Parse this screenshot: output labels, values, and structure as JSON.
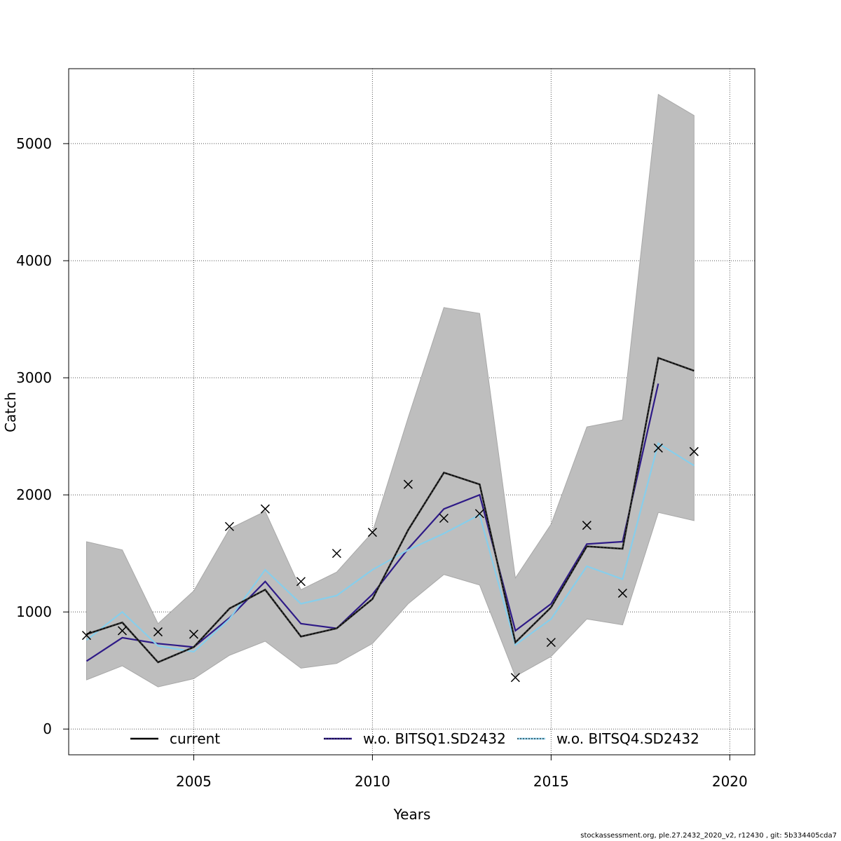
{
  "chart_data": {
    "type": "line",
    "title": "",
    "xlabel": "Years",
    "ylabel": "Catch",
    "xlim": [
      2001.5,
      2020.7
    ],
    "ylim": [
      -220,
      5640
    ],
    "x_ticks": [
      2005,
      2010,
      2015,
      2020
    ],
    "y_ticks": [
      0,
      1000,
      2000,
      3000,
      4000,
      5000
    ],
    "grid": true,
    "legend_position": "bottom",
    "x": [
      2002,
      2003,
      2004,
      2005,
      2006,
      2007,
      2008,
      2009,
      2010,
      2011,
      2012,
      2013,
      2014,
      2015,
      2016,
      2017,
      2018,
      2019
    ],
    "band": {
      "color": "#bebebe",
      "lower": [
        420,
        540,
        360,
        430,
        630,
        750,
        520,
        560,
        730,
        1070,
        1320,
        1230,
        450,
        620,
        940,
        890,
        1850,
        1780
      ],
      "upper": [
        1600,
        1530,
        900,
        1180,
        1710,
        1860,
        1190,
        1340,
        1680,
        2660,
        3600,
        3550,
        1290,
        1750,
        2580,
        2640,
        5420,
        5240
      ]
    },
    "series": [
      {
        "name": "current",
        "color": "#000000",
        "values": [
          810,
          910,
          570,
          700,
          1030,
          1190,
          790,
          860,
          1110,
          1700,
          2190,
          2090,
          740,
          1040,
          1560,
          1540,
          3170,
          3060
        ]
      },
      {
        "name": "w.o. BITSQ1.SD2432",
        "color": "#2e1a87",
        "values": [
          580,
          780,
          730,
          700,
          950,
          1260,
          900,
          860,
          1150,
          1540,
          1880,
          2000,
          840,
          1070,
          1580,
          1600,
          2950,
          null
        ]
      },
      {
        "name": "w.o. BITSQ4.SD2432",
        "color": "#87ceeb",
        "values": [
          760,
          1000,
          710,
          660,
          940,
          1360,
          1070,
          1140,
          1360,
          1530,
          1670,
          1830,
          720,
          940,
          1390,
          1280,
          2440,
          2250
        ]
      }
    ],
    "observations": {
      "marker": "x",
      "x": [
        2002,
        2003,
        2004,
        2005,
        2006,
        2007,
        2008,
        2009,
        2010,
        2011,
        2012,
        2013,
        2014,
        2015,
        2016,
        2017,
        2018,
        2019
      ],
      "values": [
        800,
        840,
        830,
        810,
        1730,
        1880,
        1260,
        1500,
        1680,
        2090,
        1800,
        1840,
        440,
        740,
        1740,
        1160,
        2400,
        2370
      ]
    }
  },
  "footer": "stockassessment.org, ple.27.2432_2020_v2, r12430 , git: 5b334405cda7"
}
